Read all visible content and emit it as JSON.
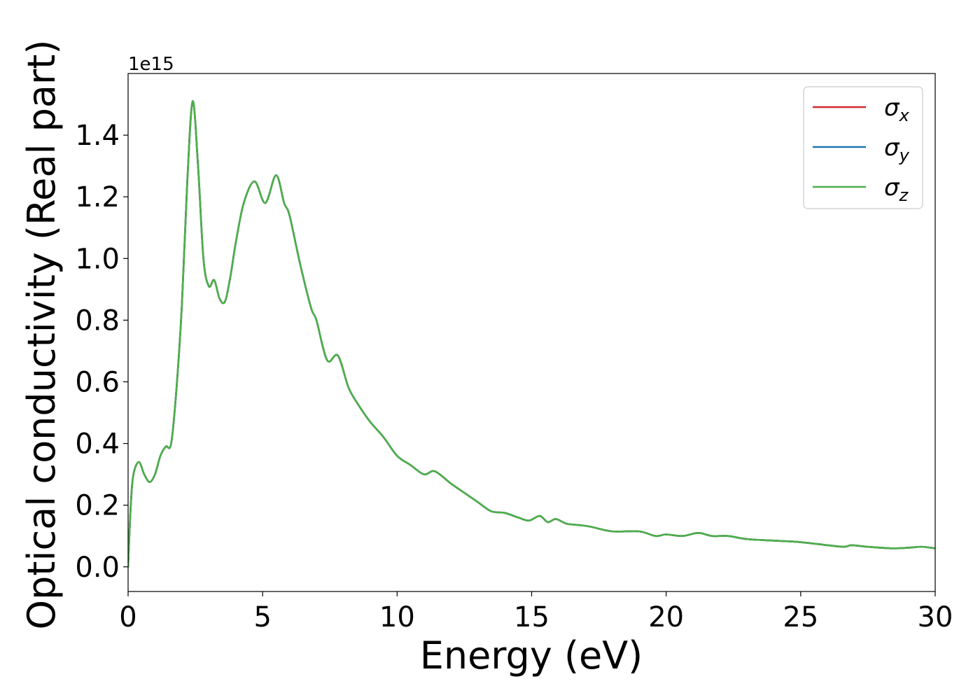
{
  "chart_data": {
    "type": "line",
    "xlabel": "Energy (eV)",
    "ylabel": "Optical conductivity (Real part)",
    "y_offset_label": "1e15",
    "xlim": [
      0,
      30
    ],
    "ylim": [
      -0.08,
      1.6
    ],
    "x_ticks": [
      0,
      5,
      10,
      15,
      20,
      25,
      30
    ],
    "x_tick_labels": [
      "0",
      "5",
      "10",
      "15",
      "20",
      "25",
      "30"
    ],
    "y_ticks": [
      0.0,
      0.2,
      0.4,
      0.6,
      0.8,
      1.0,
      1.2,
      1.4
    ],
    "y_tick_labels": [
      "0.0",
      "0.2",
      "0.4",
      "0.6",
      "0.8",
      "1.0",
      "1.2",
      "1.4"
    ],
    "grid": false,
    "legend_position": "top-right",
    "x": [
      0,
      0.1,
      0.2,
      0.4,
      0.6,
      0.8,
      1.0,
      1.2,
      1.4,
      1.6,
      1.8,
      2.0,
      2.2,
      2.4,
      2.6,
      2.8,
      3.0,
      3.2,
      3.4,
      3.6,
      3.8,
      4.0,
      4.3,
      4.7,
      5.1,
      5.5,
      5.8,
      6.0,
      6.4,
      6.8,
      7.0,
      7.4,
      7.8,
      8.2,
      8.6,
      9.0,
      9.5,
      10.0,
      10.5,
      11.0,
      11.4,
      12.0,
      12.5,
      13.0,
      13.5,
      14.0,
      14.5,
      14.9,
      15.3,
      15.6,
      15.9,
      16.3,
      16.8,
      17.2,
      18.0,
      19.0,
      19.6,
      20.0,
      20.6,
      21.2,
      21.7,
      22.3,
      23.0,
      24.0,
      25.0,
      26.0,
      26.6,
      26.9,
      27.5,
      28.4,
      29.0,
      29.5,
      30.0
    ],
    "series": [
      {
        "name": "σx",
        "color": "#d62728",
        "values": [
          0,
          0.2,
          0.3,
          0.34,
          0.3,
          0.275,
          0.3,
          0.36,
          0.39,
          0.4,
          0.58,
          0.85,
          1.25,
          1.51,
          1.3,
          1.0,
          0.91,
          0.93,
          0.87,
          0.86,
          0.94,
          1.05,
          1.18,
          1.25,
          1.18,
          1.27,
          1.18,
          1.14,
          0.98,
          0.84,
          0.8,
          0.67,
          0.685,
          0.58,
          0.52,
          0.47,
          0.42,
          0.36,
          0.33,
          0.3,
          0.31,
          0.27,
          0.24,
          0.21,
          0.18,
          0.175,
          0.16,
          0.15,
          0.165,
          0.145,
          0.155,
          0.14,
          0.135,
          0.13,
          0.115,
          0.115,
          0.1,
          0.105,
          0.1,
          0.11,
          0.1,
          0.1,
          0.09,
          0.085,
          0.08,
          0.07,
          0.065,
          0.07,
          0.065,
          0.06,
          0.062,
          0.065,
          0.06
        ]
      },
      {
        "name": "σy",
        "color": "#1f77b4",
        "values": [
          0,
          0.2,
          0.3,
          0.34,
          0.3,
          0.275,
          0.3,
          0.36,
          0.39,
          0.4,
          0.58,
          0.85,
          1.25,
          1.51,
          1.3,
          1.0,
          0.91,
          0.93,
          0.87,
          0.86,
          0.94,
          1.05,
          1.18,
          1.25,
          1.18,
          1.27,
          1.18,
          1.14,
          0.98,
          0.84,
          0.8,
          0.67,
          0.685,
          0.58,
          0.52,
          0.47,
          0.42,
          0.36,
          0.33,
          0.3,
          0.31,
          0.27,
          0.24,
          0.21,
          0.18,
          0.175,
          0.16,
          0.15,
          0.165,
          0.145,
          0.155,
          0.14,
          0.135,
          0.13,
          0.115,
          0.115,
          0.1,
          0.105,
          0.1,
          0.11,
          0.1,
          0.1,
          0.09,
          0.085,
          0.08,
          0.07,
          0.065,
          0.07,
          0.065,
          0.06,
          0.062,
          0.065,
          0.06
        ]
      },
      {
        "name": "σz",
        "color": "#4daf4a",
        "values": [
          0,
          0.2,
          0.3,
          0.34,
          0.3,
          0.275,
          0.3,
          0.36,
          0.39,
          0.4,
          0.58,
          0.85,
          1.25,
          1.51,
          1.3,
          1.0,
          0.91,
          0.93,
          0.87,
          0.86,
          0.94,
          1.05,
          1.18,
          1.25,
          1.18,
          1.27,
          1.18,
          1.14,
          0.98,
          0.84,
          0.8,
          0.67,
          0.685,
          0.58,
          0.52,
          0.47,
          0.42,
          0.36,
          0.33,
          0.3,
          0.31,
          0.27,
          0.24,
          0.21,
          0.18,
          0.175,
          0.16,
          0.15,
          0.165,
          0.145,
          0.155,
          0.14,
          0.135,
          0.13,
          0.115,
          0.115,
          0.1,
          0.105,
          0.1,
          0.11,
          0.1,
          0.1,
          0.09,
          0.085,
          0.08,
          0.07,
          0.065,
          0.07,
          0.065,
          0.06,
          0.062,
          0.065,
          0.06
        ]
      }
    ],
    "legend": [
      {
        "symbol": "σ",
        "sub": "x",
        "color": "#d62728"
      },
      {
        "symbol": "σ",
        "sub": "y",
        "color": "#1f77b4"
      },
      {
        "symbol": "σ",
        "sub": "z",
        "color": "#4daf4a"
      }
    ]
  }
}
